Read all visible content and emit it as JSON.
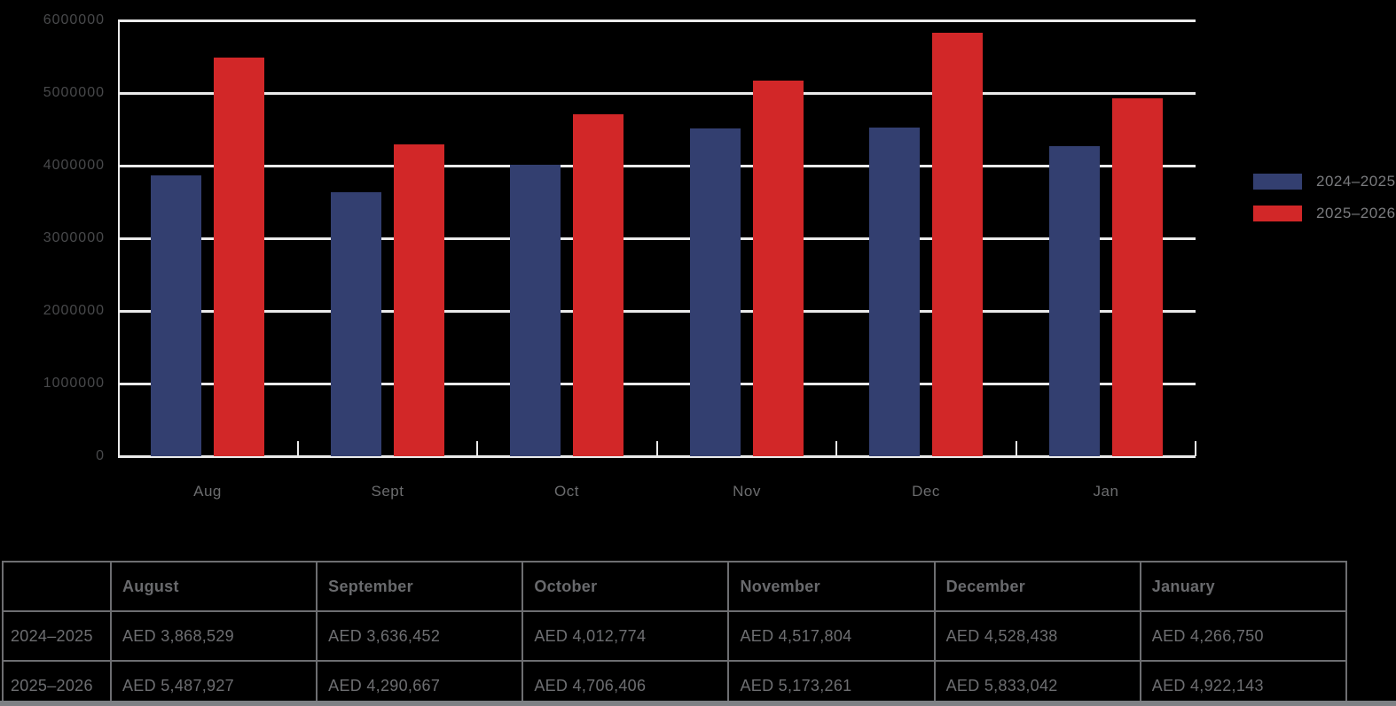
{
  "chart_data": {
    "type": "bar",
    "title": "",
    "xlabel": "",
    "ylabel": "",
    "categories": [
      "Aug",
      "Sept",
      "Oct",
      "Nov",
      "Dec",
      "Jan"
    ],
    "series": [
      {
        "name": "2024–2025",
        "color": "#333f70",
        "values": [
          3868529,
          3636452,
          4012774,
          4517804,
          4528438,
          4266750
        ]
      },
      {
        "name": "2025–2026",
        "color": "#d22728",
        "values": [
          5487927,
          4290667,
          4706406,
          5173261,
          5833042,
          4922143
        ]
      }
    ],
    "ylim": [
      0,
      6000000
    ],
    "yticks": [
      0,
      1000000,
      2000000,
      3000000,
      4000000,
      5000000,
      6000000
    ],
    "ytick_labels": [
      "0",
      "1000000",
      "2000000",
      "3000000",
      "4000000",
      "5000000",
      "6000000"
    ],
    "grid": true,
    "legend_position": "right-middle",
    "background": "#000000",
    "gridline_color": "#ebebeb"
  },
  "legend": {
    "items": [
      {
        "label": "2024–2025",
        "color": "#333f70"
      },
      {
        "label": "2025–2026",
        "color": "#d22728"
      }
    ]
  },
  "table": {
    "corner_label": "",
    "columns": [
      "August",
      "September",
      "October",
      "November",
      "December",
      "January"
    ],
    "rows": [
      {
        "label": "2024–2025",
        "values": [
          "AED 3,868,529",
          "AED 3,636,452",
          "AED 4,012,774",
          "AED 4,517,804",
          "AED 4,528,438",
          "AED 4,266,750"
        ]
      },
      {
        "label": "2025–2026",
        "values": [
          "AED 5,487,927",
          "AED 4,290,667",
          "AED 4,706,406",
          "AED 5,173,261",
          "AED 5,833,042",
          "AED 4,922,143"
        ]
      }
    ]
  },
  "colors": {
    "series1": "#333f70",
    "series2": "#d22728",
    "grid": "#ebebeb",
    "y_label_text": "#48494b",
    "x_label_text": "#6b6c6e",
    "legend_text": "#7a7b7e",
    "table_text": "#6d6e71",
    "table_border": "#6d6e71",
    "bottom_strip": "#7e8084",
    "background": "#000000"
  }
}
